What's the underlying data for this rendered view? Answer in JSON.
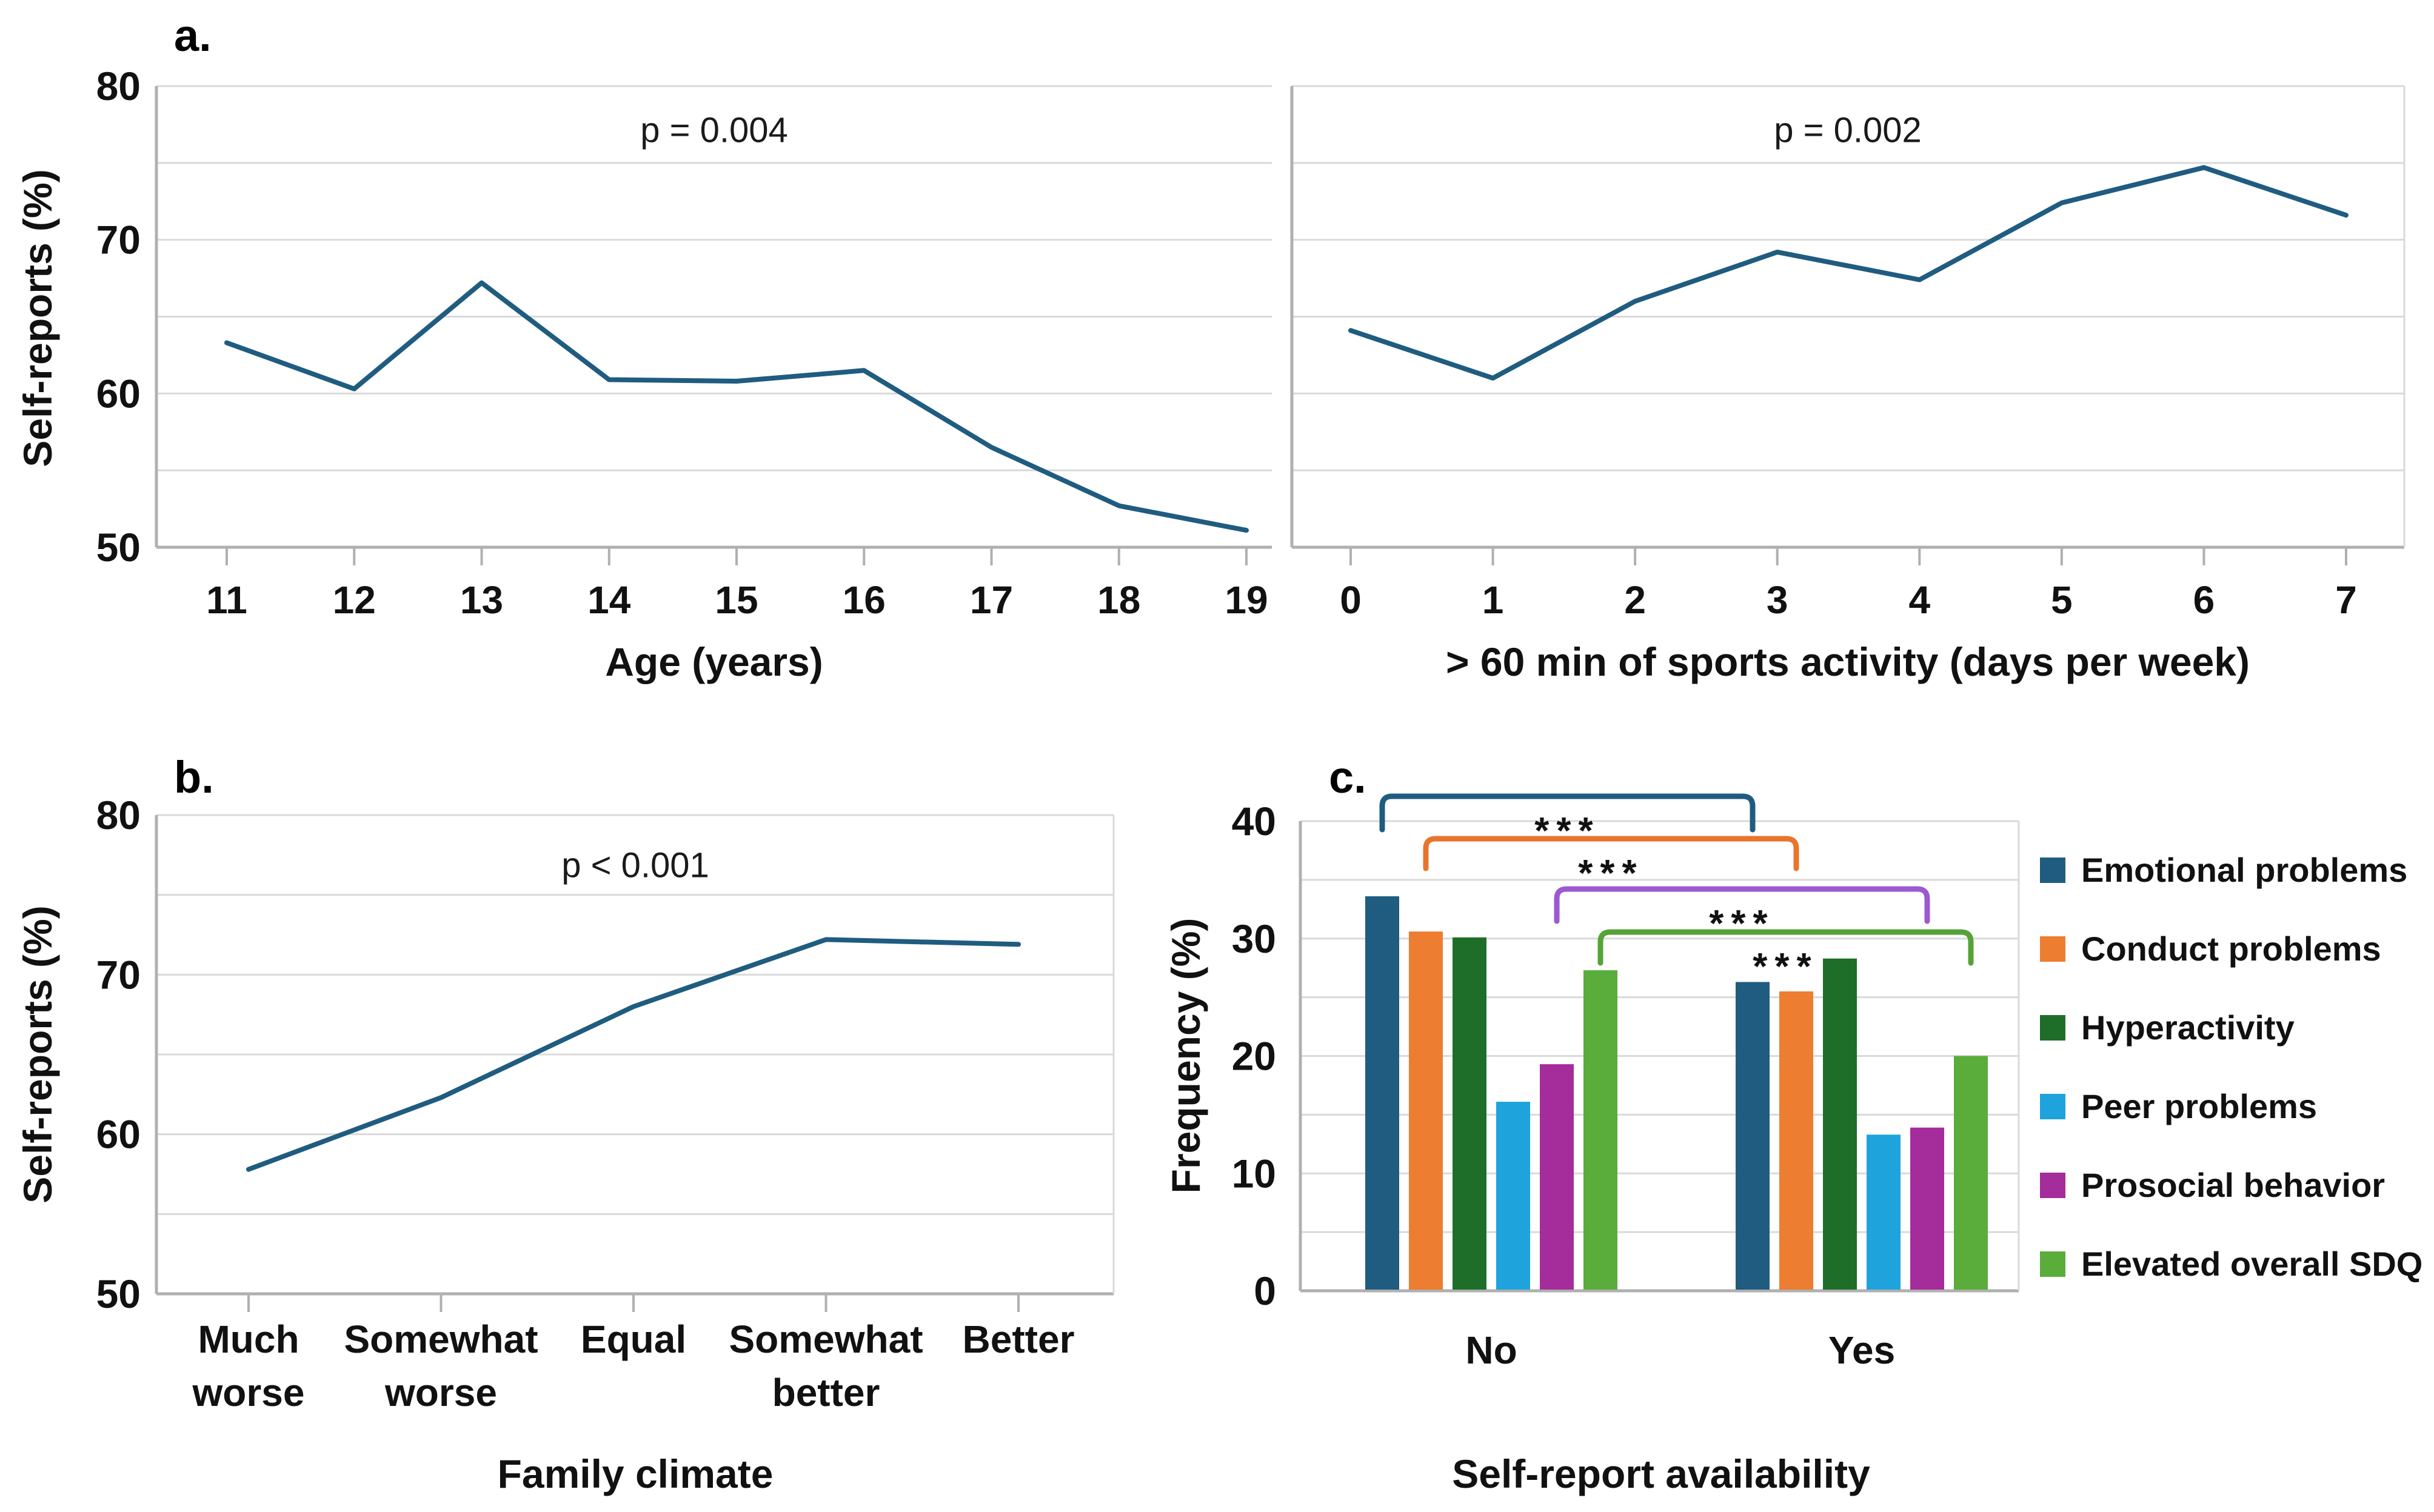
{
  "figure": {
    "panels": {
      "a": {
        "label": "a."
      },
      "b": {
        "label": "b."
      },
      "c": {
        "label": "c."
      }
    }
  },
  "colors": {
    "line": "#1F5C80",
    "axis": "#B0B0B0",
    "grid": "#D9D9D9"
  },
  "chart_data": [
    {
      "id": "age",
      "type": "line",
      "title_annotation": "p = 0.004",
      "x": [
        "11",
        "12",
        "13",
        "14",
        "15",
        "16",
        "17",
        "18",
        "19"
      ],
      "values": [
        63.3,
        60.3,
        67.2,
        60.9,
        60.8,
        61.5,
        56.5,
        52.7,
        51.1
      ],
      "xlabel": "Age (years)",
      "ylabel": "Self-reports (%)",
      "ylim": [
        50,
        80
      ],
      "yticks": [
        50,
        60,
        70,
        80
      ],
      "grid_step": 5,
      "line_color": "#1F5C80",
      "legend_position": "none"
    },
    {
      "id": "sports",
      "type": "line",
      "title_annotation": "p = 0.002",
      "x": [
        "0",
        "1",
        "2",
        "3",
        "4",
        "5",
        "6",
        "7"
      ],
      "values": [
        64.1,
        61.0,
        66.0,
        69.2,
        67.4,
        72.4,
        74.7,
        71.6
      ],
      "xlabel": "> 60 min of sports activity (days per week)",
      "ylabel": "Self-reports (%)",
      "ylim": [
        50,
        80
      ],
      "yticks": [
        50,
        60,
        70,
        80
      ],
      "grid_step": 5,
      "line_color": "#1F5C80",
      "legend_position": "none"
    },
    {
      "id": "family",
      "type": "line",
      "title_annotation": "p < 0.001",
      "x": [
        [
          "Much",
          "worse"
        ],
        [
          "Somewhat",
          "worse"
        ],
        [
          "Equal"
        ],
        [
          "Somewhat",
          "better"
        ],
        [
          "Better"
        ]
      ],
      "values": [
        57.8,
        62.3,
        68.0,
        72.2,
        71.9
      ],
      "xlabel": "Family climate",
      "ylabel": "Self-reports (%)",
      "ylim": [
        50,
        80
      ],
      "yticks": [
        50,
        60,
        70,
        80
      ],
      "grid_step": 5,
      "line_color": "#1F5C80",
      "legend_position": "none"
    },
    {
      "id": "sdq",
      "type": "bar",
      "categories": [
        "No",
        "Yes"
      ],
      "series": [
        {
          "name": "Emotional problems",
          "color": "#1F5C80",
          "values": [
            33.6,
            26.3
          ]
        },
        {
          "name": "Conduct problems",
          "color": "#ED7D31",
          "values": [
            30.6,
            25.5
          ]
        },
        {
          "name": "Hyperactivity",
          "color": "#1E6E2A",
          "values": [
            30.1,
            28.3
          ]
        },
        {
          "name": "Peer problems",
          "color": "#1FA3DC",
          "values": [
            16.1,
            13.3
          ]
        },
        {
          "name": "Prosocial behavior",
          "color": "#A52C9B",
          "values": [
            19.3,
            13.9
          ]
        },
        {
          "name": "Elevated overall SDQ",
          "color": "#5AAC3B",
          "values": [
            27.3,
            20.0
          ]
        }
      ],
      "significance_brackets": [
        {
          "series": "Emotional problems",
          "label": "***",
          "color": "#1F5C80"
        },
        {
          "series": "Conduct problems",
          "label": "***",
          "color": "#E8752B"
        },
        {
          "series": "Prosocial behavior",
          "label": "***",
          "color": "#9C59D1"
        },
        {
          "series": "Elevated overall SDQ",
          "label": "***",
          "color": "#55A337"
        }
      ],
      "xlabel": "Self-report availability",
      "ylabel": "Frequency (%)",
      "ylim": [
        0,
        40
      ],
      "yticks": [
        0,
        10,
        20,
        30,
        40
      ],
      "grid_step": 5,
      "legend_position": "right"
    }
  ]
}
